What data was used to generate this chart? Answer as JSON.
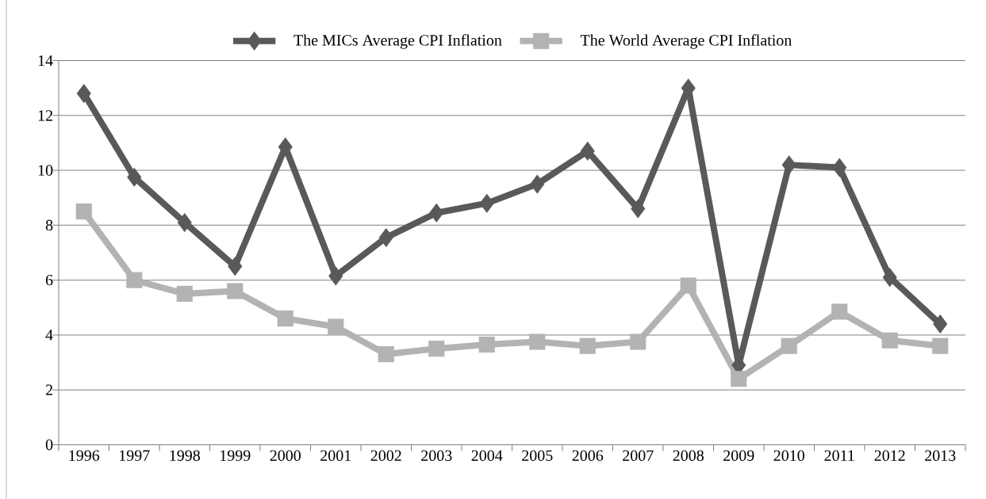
{
  "chart_data": {
    "type": "line",
    "categories": [
      "1996",
      "1997",
      "1998",
      "1999",
      "2000",
      "2001",
      "2002",
      "2003",
      "2004",
      "2005",
      "2006",
      "2007",
      "2008",
      "2009",
      "2010",
      "2011",
      "2012",
      "2013"
    ],
    "series": [
      {
        "name": "The MICs Average CPI Inflation",
        "color": "#595959",
        "marker": "diamond",
        "values": [
          12.8,
          9.75,
          8.1,
          6.5,
          10.85,
          6.15,
          7.55,
          8.45,
          8.8,
          9.5,
          10.7,
          8.6,
          13.0,
          2.9,
          10.2,
          10.1,
          6.1,
          4.4
        ]
      },
      {
        "name": "The World Average CPI Inflation",
        "color": "#b3b3b3",
        "marker": "square",
        "values": [
          8.5,
          6.0,
          5.5,
          5.6,
          4.6,
          4.3,
          3.3,
          3.5,
          3.65,
          3.75,
          3.6,
          3.75,
          5.8,
          2.4,
          3.6,
          4.85,
          3.8,
          3.6
        ]
      }
    ],
    "ylim": [
      0,
      14
    ],
    "yticks": [
      0,
      2,
      4,
      6,
      8,
      10,
      12,
      14
    ],
    "grid": "y",
    "legend": "top",
    "line_style": "solid"
  }
}
